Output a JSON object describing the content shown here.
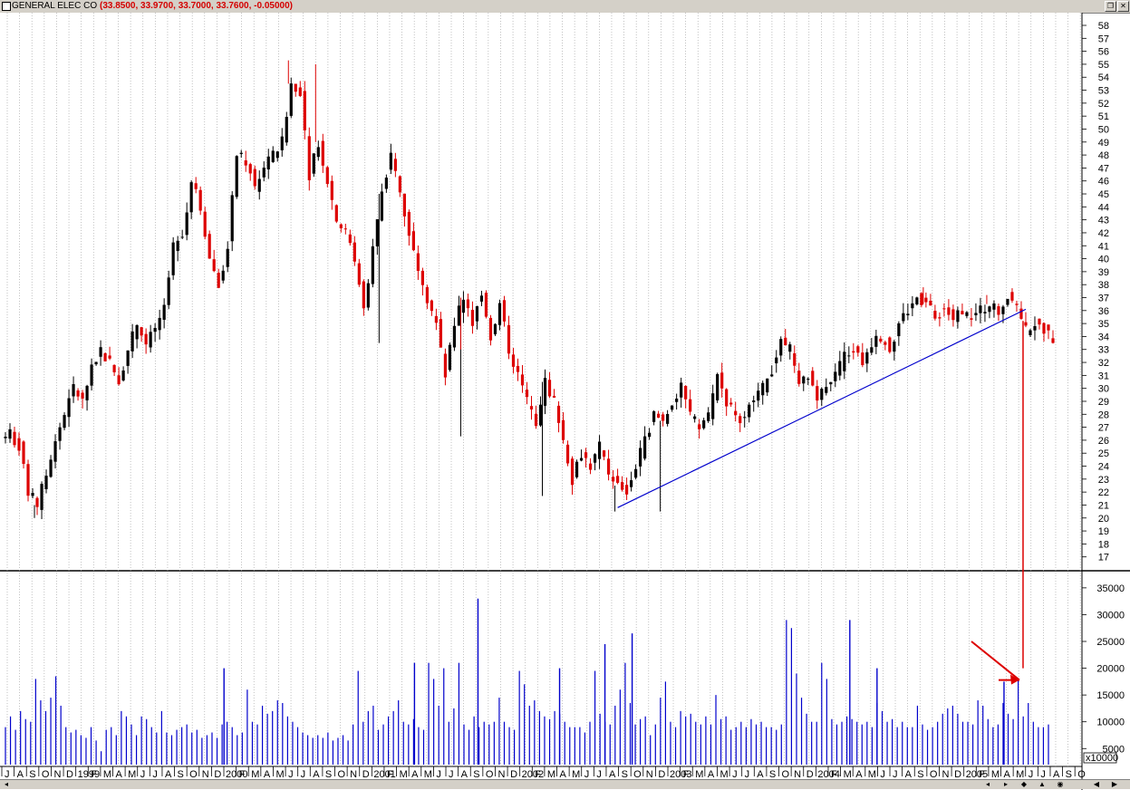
{
  "window": {
    "name": "GENERAL ELEC CO",
    "quote": "(33.8500, 33.9700, 33.7000, 33.7600, -0.05000)",
    "restore_glyph": "❐",
    "close_glyph": "✕"
  },
  "colors": {
    "up_bar": "#000000",
    "down_bar": "#dd0000",
    "volume": "#0000cc",
    "trendline": "#0000cc",
    "annotation": "#dd0000",
    "grid": "#a9a9a9"
  },
  "chart_data": [
    {
      "type": "candlestick",
      "panel": "price",
      "ylim": [
        16,
        58
      ],
      "yticks": [
        17,
        18,
        19,
        20,
        21,
        22,
        23,
        24,
        25,
        26,
        27,
        28,
        29,
        30,
        31,
        32,
        33,
        34,
        35,
        36,
        37,
        38,
        39,
        40,
        41,
        42,
        43,
        44,
        45,
        46,
        47,
        48,
        49,
        50,
        51,
        52,
        53,
        54,
        55,
        56,
        57,
        58
      ],
      "x_months": [
        "J",
        "A",
        "S",
        "O",
        "N",
        "D",
        "1999",
        "F",
        "M",
        "A",
        "M",
        "J",
        "J",
        "A",
        "S",
        "O",
        "N",
        "D",
        "2000",
        "F",
        "M",
        "A",
        "M",
        "J",
        "J",
        "A",
        "S",
        "O",
        "N",
        "D",
        "2001",
        "F",
        "M",
        "A",
        "M",
        "J",
        "J",
        "A",
        "S",
        "O",
        "N",
        "D",
        "2002",
        "F",
        "M",
        "A",
        "M",
        "J",
        "J",
        "A",
        "S",
        "O",
        "N",
        "D",
        "2003",
        "F",
        "M",
        "A",
        "M",
        "J",
        "J",
        "A",
        "S",
        "O",
        "N",
        "D",
        "2004",
        "F",
        "M",
        "A",
        "M",
        "J",
        "J",
        "A",
        "S",
        "O",
        "N",
        "D",
        "2005",
        "F",
        "M",
        "A",
        "M",
        "J",
        "J",
        "A",
        "S",
        "O"
      ],
      "price_path": [
        [
          0,
          26.5
        ],
        [
          1,
          25.5
        ],
        [
          2,
          22
        ],
        [
          3,
          21
        ],
        [
          4,
          23.5
        ],
        [
          5,
          26
        ],
        [
          6,
          28
        ],
        [
          7,
          30
        ],
        [
          8,
          29
        ],
        [
          9,
          31.5
        ],
        [
          10,
          33
        ],
        [
          11,
          32
        ],
        [
          12,
          30.5
        ],
        [
          13,
          33
        ],
        [
          14,
          35
        ],
        [
          15,
          33.5
        ],
        [
          16,
          34.5
        ],
        [
          17,
          36
        ],
        [
          18,
          41
        ],
        [
          19,
          42
        ],
        [
          20,
          46
        ],
        [
          21,
          44
        ],
        [
          22,
          40
        ],
        [
          23,
          38
        ],
        [
          24,
          41
        ],
        [
          25,
          48
        ],
        [
          26,
          47.5
        ],
        [
          27,
          45.5
        ],
        [
          28,
          47
        ],
        [
          29,
          48
        ],
        [
          30,
          49
        ],
        [
          31,
          53.5
        ],
        [
          32,
          53
        ],
        [
          33,
          46.5
        ],
        [
          34,
          49
        ],
        [
          35,
          46
        ],
        [
          36,
          43
        ],
        [
          37,
          42
        ],
        [
          38,
          40
        ],
        [
          39,
          36
        ],
        [
          40,
          41
        ],
        [
          41,
          45
        ],
        [
          42,
          48
        ],
        [
          43,
          45
        ],
        [
          44,
          42
        ],
        [
          45,
          39.5
        ],
        [
          46,
          37
        ],
        [
          47,
          35
        ],
        [
          48,
          31
        ],
        [
          49,
          35
        ],
        [
          50,
          37
        ],
        [
          51,
          35
        ],
        [
          52,
          37.5
        ],
        [
          53,
          34
        ],
        [
          54,
          36.5
        ],
        [
          55,
          33
        ],
        [
          56,
          31
        ],
        [
          57,
          29
        ],
        [
          58,
          27.5
        ],
        [
          59,
          30.5
        ],
        [
          60,
          29
        ],
        [
          61,
          26
        ],
        [
          62,
          23
        ],
        [
          63,
          25
        ],
        [
          64,
          24
        ],
        [
          65,
          25.5
        ],
        [
          66,
          23.5
        ],
        [
          67,
          22.5
        ],
        [
          68,
          22
        ],
        [
          69,
          24
        ],
        [
          70,
          26
        ],
        [
          71,
          28
        ],
        [
          72,
          27.5
        ],
        [
          73,
          29
        ],
        [
          74,
          30
        ],
        [
          75,
          28
        ],
        [
          76,
          27
        ],
        [
          77,
          28
        ],
        [
          78,
          31
        ],
        [
          79,
          29
        ],
        [
          80,
          28
        ],
        [
          81,
          27.5
        ],
        [
          82,
          29.5
        ],
        [
          83,
          30
        ],
        [
          84,
          31.5
        ],
        [
          85,
          33.5
        ],
        [
          86,
          33
        ],
        [
          87,
          30
        ],
        [
          88,
          31
        ],
        [
          89,
          29.5
        ],
        [
          90,
          30.5
        ],
        [
          91,
          31
        ],
        [
          92,
          32.5
        ],
        [
          93,
          33
        ],
        [
          94,
          32
        ],
        [
          95,
          33.5
        ],
        [
          96,
          34
        ],
        [
          97,
          33
        ],
        [
          98,
          35
        ],
        [
          99,
          36
        ],
        [
          100,
          37
        ],
        [
          101,
          36.5
        ],
        [
          102,
          35.5
        ],
        [
          103,
          36
        ],
        [
          104,
          35.5
        ],
        [
          105,
          36
        ],
        [
          106,
          35.5
        ],
        [
          107,
          36
        ],
        [
          108,
          36.5
        ],
        [
          109,
          36
        ],
        [
          110,
          37
        ],
        [
          111,
          36.5
        ],
        [
          112,
          34.5
        ],
        [
          113,
          35
        ],
        [
          114,
          34.5
        ],
        [
          115,
          33.8
        ]
      ],
      "wicks": [
        {
          "i": 3,
          "low": 20
        },
        {
          "i": 31,
          "high": 55.3
        },
        {
          "i": 34,
          "high": 55
        },
        {
          "i": 41,
          "low": 33.5
        },
        {
          "i": 50,
          "low": 26.3
        },
        {
          "i": 50,
          "high": 33
        },
        {
          "i": 59,
          "low": 21.7
        },
        {
          "i": 67,
          "low": 20.5
        },
        {
          "i": 72,
          "low": 20.5
        },
        {
          "i": 101,
          "high": 37.8
        },
        {
          "i": 108,
          "high": 37.2
        }
      ],
      "trendline": {
        "from": [
          67.5,
          20.8
        ],
        "to": [
          112.5,
          36.1
        ]
      },
      "x_slots": 116
    },
    {
      "type": "bar",
      "panel": "volume",
      "ylim": [
        2000,
        36500
      ],
      "yticks": [
        5000,
        10000,
        15000,
        20000,
        25000,
        30000,
        35000
      ],
      "scale_label": "x10000",
      "volumes": [
        9000,
        11000,
        8500,
        12000,
        10500,
        10000,
        18000,
        14000,
        12000,
        14500,
        18500,
        13000,
        9000,
        8000,
        8500,
        7500,
        7000,
        9000,
        6500,
        4500,
        8500,
        9000,
        7500,
        12000,
        11000,
        9500,
        7500,
        11000,
        10500,
        9000,
        8000,
        12000,
        8000,
        7500,
        8500,
        9000,
        9500,
        8000,
        8500,
        7000,
        7500,
        8000,
        7000,
        9500,
        10000,
        9000,
        7500,
        8000,
        16000,
        10000,
        9500,
        13000,
        11500,
        12000,
        14000,
        13500,
        11000,
        10000,
        9000,
        8000,
        7500,
        7000,
        7500,
        7000,
        8000,
        6500,
        7000,
        7500,
        6500,
        9500,
        19500,
        10000,
        12000,
        13000,
        8500,
        9500,
        11000,
        12000,
        14000,
        10000,
        9500,
        10500,
        9000,
        8500,
        21000,
        18000,
        13000,
        20000,
        10000,
        12500,
        21000,
        9500,
        8500,
        11000,
        9000,
        10000,
        9500,
        10000,
        14500,
        10000,
        9000,
        8500,
        19500,
        17000,
        13000,
        14000,
        12000,
        11000,
        10500,
        12000,
        11500,
        10000,
        9000,
        9000,
        9000,
        8000,
        10000,
        19500,
        11500,
        10000,
        9500,
        13000,
        16000,
        21000,
        13500,
        9500,
        10500,
        11000,
        7500,
        9500,
        14500,
        17500,
        10000,
        9000,
        12000,
        11000,
        11500,
        10000,
        9500,
        11000,
        9500,
        15000,
        10500,
        11000,
        8500,
        9000,
        10000,
        9000,
        10500,
        9500,
        10000,
        9000,
        9000,
        8500,
        9500,
        29000,
        27500,
        19000,
        14500,
        11500,
        10000,
        10000,
        21000,
        18000,
        10500,
        9500,
        10000,
        11000,
        10500,
        10000,
        9500,
        10000,
        9000,
        13500,
        12000,
        10000,
        10500,
        9000,
        10000,
        9000,
        9000,
        13000,
        9500,
        8500,
        9000,
        10000,
        11500,
        12500,
        13000,
        11500,
        10000,
        10000,
        9500,
        14000,
        13000,
        10500,
        9000,
        9500,
        13500,
        11500,
        10500,
        18000,
        11000,
        13500,
        10000,
        9000,
        9000,
        9500
      ],
      "spikes": [
        {
          "k": 24,
          "v": 20000
        },
        {
          "k": 45,
          "v": 21000
        },
        {
          "k": 52,
          "v": 33000
        },
        {
          "k": 61,
          "v": 20000
        },
        {
          "k": 66,
          "v": 24500
        },
        {
          "k": 69,
          "v": 26500
        },
        {
          "k": 93,
          "v": 29000
        },
        {
          "k": 96,
          "v": 20000
        },
        {
          "k": 110,
          "v": 17500
        }
      ]
    }
  ],
  "annotations": {
    "vertical_drop_x": 112.5,
    "arrow_target_slot": 112.5
  },
  "statusbar": {
    "left_arrow": "◂",
    "glyphs": [
      "◂",
      "▸",
      "◆",
      "▲",
      "◉",
      "◀",
      "▶"
    ]
  }
}
